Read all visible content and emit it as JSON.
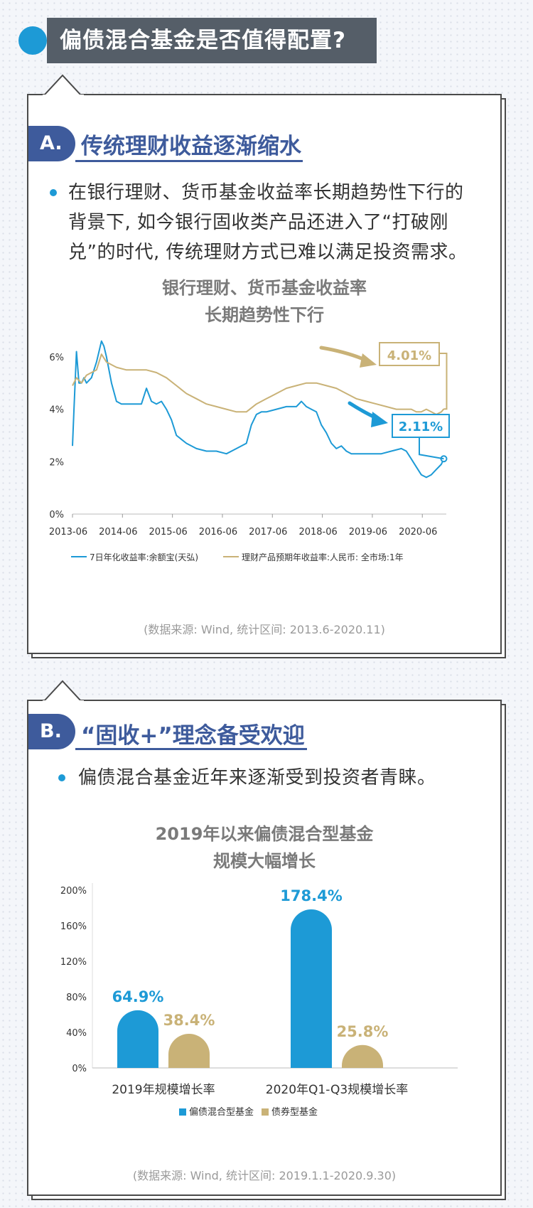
{
  "header": {
    "title": "偏债混合基金是否值得配置?"
  },
  "section_a": {
    "badge": "A.",
    "title": "传统理财收益逐渐缩水",
    "body_lines": [
      "在银行理财、货币基金收益率长期趋势性下行的",
      "背景下, 如今银行固收类产品还进入了“打破刚",
      "兑”的时代, 传统理财方式已难以满足投资需求。"
    ],
    "source": "(数据来源: Wind, 统计区间: 2013.6-2020.11)"
  },
  "section_b": {
    "badge": "B.",
    "title": "“固收+”理念备受欢迎",
    "body": "偏债混合基金近年来逐渐受到投资者青睐。",
    "source": "(数据来源: Wind, 统计区间: 2019.1.1-2020.9.30)"
  },
  "colors": {
    "blue": "#1d9ad6",
    "gold": "#c9b277",
    "navy": "#3e5b9c",
    "header_bg": "#555e68"
  },
  "chart_data": [
    {
      "type": "line",
      "title_lines": [
        "银行理财、货币基金收益率",
        "长期趋势性下行"
      ],
      "x_ticks": [
        "2013-06",
        "2014-06",
        "2015-06",
        "2016-06",
        "2017-06",
        "2018-06",
        "2019-06",
        "2020-06"
      ],
      "y_ticks": [
        "0%",
        "2%",
        "4%",
        "6%"
      ],
      "ylim": [
        0,
        7
      ],
      "legend": [
        "7日年化收益率:余额宝(天弘)",
        "理财产品预期年收益率:人民币: 全市场:1年"
      ],
      "annotations": {
        "gold_end_label": "4.01%",
        "blue_end_label": "2.11%"
      },
      "series": [
        {
          "name": "7日年化收益率:余额宝(天弘)",
          "color": "#1d9ad6",
          "x": [
            2013.42,
            2013.45,
            2013.5,
            2013.55,
            2013.6,
            2013.65,
            2013.7,
            2013.8,
            2013.9,
            2014.0,
            2014.05,
            2014.1,
            2014.2,
            2014.3,
            2014.4,
            2014.6,
            2014.8,
            2014.9,
            2015.0,
            2015.1,
            2015.2,
            2015.3,
            2015.4,
            2015.5,
            2015.7,
            2015.9,
            2016.1,
            2016.3,
            2016.5,
            2016.7,
            2016.9,
            2017.0,
            2017.1,
            2017.2,
            2017.3,
            2017.5,
            2017.7,
            2017.9,
            2018.0,
            2018.1,
            2018.2,
            2018.3,
            2018.4,
            2018.5,
            2018.6,
            2018.7,
            2018.8,
            2018.9,
            2019.0,
            2019.2,
            2019.4,
            2019.6,
            2019.8,
            2020.0,
            2020.1,
            2020.2,
            2020.3,
            2020.4,
            2020.5,
            2020.6,
            2020.7,
            2020.8,
            2020.85
          ],
          "values": [
            2.6,
            4.0,
            6.2,
            5.0,
            5.0,
            5.2,
            5.0,
            5.2,
            5.8,
            6.6,
            6.4,
            6.0,
            5.0,
            4.3,
            4.2,
            4.2,
            4.2,
            4.8,
            4.3,
            4.2,
            4.3,
            4.0,
            3.6,
            3.0,
            2.7,
            2.5,
            2.4,
            2.4,
            2.3,
            2.5,
            2.7,
            3.4,
            3.8,
            3.9,
            3.9,
            4.0,
            4.1,
            4.1,
            4.3,
            4.1,
            4.0,
            3.9,
            3.4,
            3.1,
            2.7,
            2.5,
            2.6,
            2.4,
            2.3,
            2.3,
            2.3,
            2.3,
            2.4,
            2.5,
            2.4,
            2.1,
            1.8,
            1.5,
            1.4,
            1.5,
            1.7,
            1.9,
            2.11
          ]
        },
        {
          "name": "理财产品预期年收益率:人民币: 全市场:1年",
          "color": "#c9b277",
          "x": [
            2013.42,
            2013.5,
            2013.6,
            2013.7,
            2013.8,
            2013.9,
            2014.0,
            2014.1,
            2014.3,
            2014.5,
            2014.7,
            2014.9,
            2015.1,
            2015.3,
            2015.5,
            2015.7,
            2015.9,
            2016.1,
            2016.3,
            2016.5,
            2016.7,
            2016.9,
            2017.1,
            2017.3,
            2017.5,
            2017.7,
            2017.9,
            2018.1,
            2018.3,
            2018.5,
            2018.7,
            2018.9,
            2019.1,
            2019.3,
            2019.5,
            2019.7,
            2019.9,
            2020.1,
            2020.2,
            2020.3,
            2020.4,
            2020.5,
            2020.6,
            2020.7,
            2020.8,
            2020.85
          ],
          "values": [
            4.9,
            5.2,
            5.0,
            5.3,
            5.4,
            5.5,
            6.1,
            5.8,
            5.6,
            5.5,
            5.5,
            5.5,
            5.4,
            5.2,
            4.9,
            4.6,
            4.4,
            4.2,
            4.1,
            4.0,
            3.9,
            3.9,
            4.2,
            4.4,
            4.6,
            4.8,
            4.9,
            5.0,
            5.0,
            4.9,
            4.8,
            4.6,
            4.4,
            4.3,
            4.2,
            4.1,
            4.0,
            4.0,
            4.0,
            3.9,
            3.9,
            4.0,
            3.9,
            3.8,
            3.9,
            4.01
          ]
        }
      ]
    },
    {
      "type": "bar",
      "title_lines": [
        "2019年以来偏债混合型基金",
        "规模大幅增长"
      ],
      "categories": [
        "2019年规模增长率",
        "2020年Q1-Q3规模增长率"
      ],
      "y_ticks": [
        "0%",
        "40%",
        "80%",
        "120%",
        "160%",
        "200%"
      ],
      "ylim": [
        0,
        200
      ],
      "series": [
        {
          "name": "偏债混合型基金",
          "color": "#1d9ad6",
          "values": [
            64.9,
            178.4
          ],
          "labels": [
            "64.9%",
            "178.4%"
          ]
        },
        {
          "name": "债券型基金",
          "color": "#c9b277",
          "values": [
            38.4,
            25.8
          ],
          "labels": [
            "38.4%",
            "25.8%"
          ]
        }
      ]
    }
  ]
}
